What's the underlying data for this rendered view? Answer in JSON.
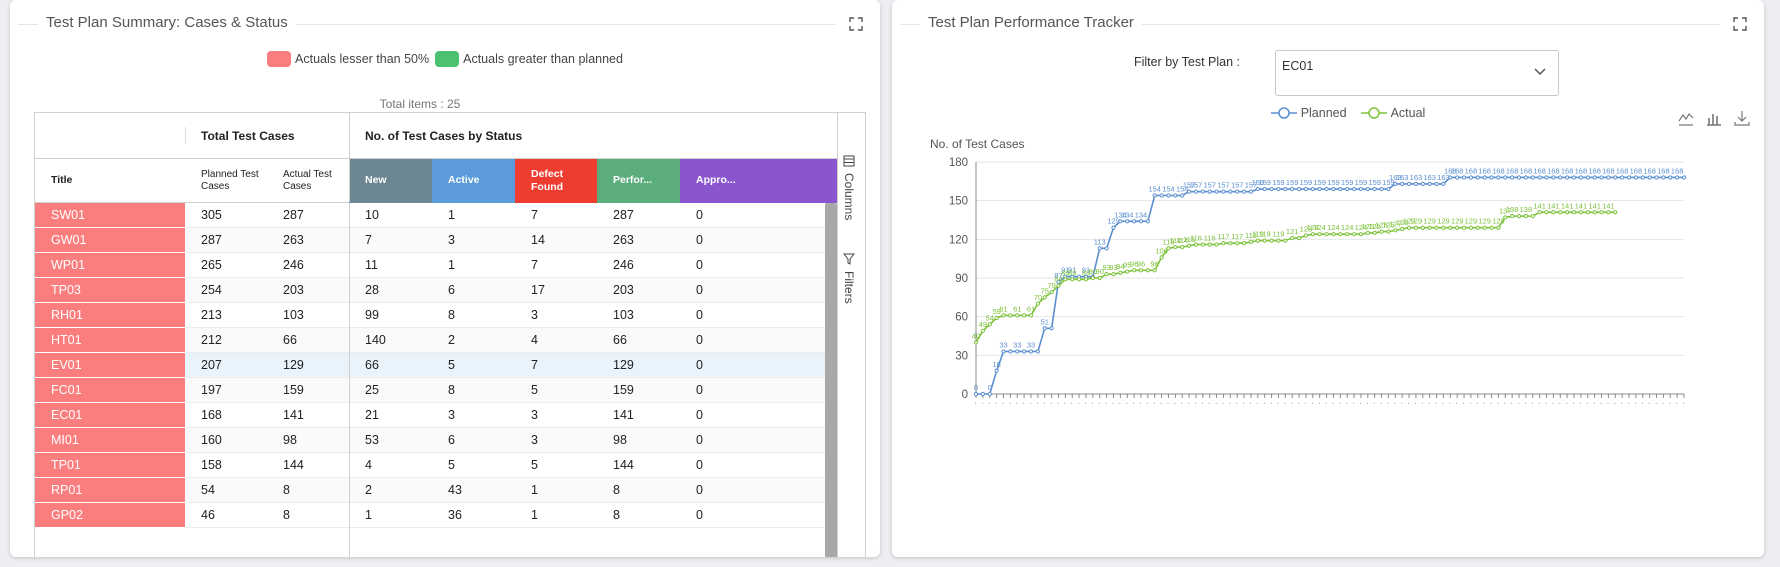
{
  "left_panel": {
    "title": "Test Plan Summary: Cases & Status",
    "legend": [
      {
        "label": "Actuals lesser than 50%",
        "color": "#fb7e7e"
      },
      {
        "label": "Actuals greater than planned",
        "color": "#4cc170"
      }
    ],
    "total_items": "Total items : 25",
    "group_headers": {
      "total": "Total Test Cases",
      "status": "No. of Test Cases by Status"
    },
    "columns": {
      "title": "Title",
      "planned": "Planned Test Cases",
      "actual": "Actual Test Cases",
      "new": "New",
      "active": "Active",
      "defect": "Defect Found",
      "performed": "Perfor...",
      "approved": "Appro..."
    },
    "status_colors": {
      "new": "#6c8791",
      "active": "#5b9bd9",
      "defect": "#ee3d30",
      "performed": "#5cad7c",
      "approved": "#8a56d0"
    },
    "sidebar": {
      "columns": "Columns",
      "filters": "Filters"
    },
    "rows": [
      {
        "title": "SW01",
        "planned": "305",
        "actual": "287",
        "new": "10",
        "active": "1",
        "defect": "7",
        "performed": "287",
        "approved": "0"
      },
      {
        "title": "GW01",
        "planned": "287",
        "actual": "263",
        "new": "7",
        "active": "3",
        "defect": "14",
        "performed": "263",
        "approved": "0"
      },
      {
        "title": "WP01",
        "planned": "265",
        "actual": "246",
        "new": "11",
        "active": "1",
        "defect": "7",
        "performed": "246",
        "approved": "0"
      },
      {
        "title": "TP03",
        "planned": "254",
        "actual": "203",
        "new": "28",
        "active": "6",
        "defect": "17",
        "performed": "203",
        "approved": "0"
      },
      {
        "title": "RH01",
        "planned": "213",
        "actual": "103",
        "new": "99",
        "active": "8",
        "defect": "3",
        "performed": "103",
        "approved": "0"
      },
      {
        "title": "HT01",
        "planned": "212",
        "actual": "66",
        "new": "140",
        "active": "2",
        "defect": "4",
        "performed": "66",
        "approved": "0"
      },
      {
        "title": "EV01",
        "planned": "207",
        "actual": "129",
        "new": "66",
        "active": "5",
        "defect": "7",
        "performed": "129",
        "approved": "0"
      },
      {
        "title": "FC01",
        "planned": "197",
        "actual": "159",
        "new": "25",
        "active": "8",
        "defect": "5",
        "performed": "159",
        "approved": "0"
      },
      {
        "title": "EC01",
        "planned": "168",
        "actual": "141",
        "new": "21",
        "active": "3",
        "defect": "3",
        "performed": "141",
        "approved": "0"
      },
      {
        "title": "MI01",
        "planned": "160",
        "actual": "98",
        "new": "53",
        "active": "6",
        "defect": "3",
        "performed": "98",
        "approved": "0"
      },
      {
        "title": "TP01",
        "planned": "158",
        "actual": "144",
        "new": "4",
        "active": "5",
        "defect": "5",
        "performed": "144",
        "approved": "0"
      },
      {
        "title": "RP01",
        "planned": "54",
        "actual": "8",
        "new": "2",
        "active": "43",
        "defect": "1",
        "performed": "8",
        "approved": "0"
      },
      {
        "title": "GP02",
        "planned": "46",
        "actual": "8",
        "new": "1",
        "active": "36",
        "defect": "1",
        "performed": "8",
        "approved": "0"
      }
    ]
  },
  "right_panel": {
    "title": "Test Plan Performance Tracker",
    "filter_label": "Filter by Test Plan :",
    "filter_value": "EC01",
    "legend": [
      {
        "label": "Planned",
        "color": "#5b8fd0"
      },
      {
        "label": "Actual",
        "color": "#7cc23a"
      }
    ],
    "toolbox": [
      "line-chart-icon",
      "bar-chart-icon",
      "download-icon"
    ]
  },
  "chart_data": {
    "type": "line",
    "ylabel": "No. of Test Cases",
    "ylim": [
      0,
      180
    ],
    "yticks": [
      0,
      30,
      60,
      90,
      120,
      150,
      180
    ],
    "x_count": 104,
    "grid": "horizontal",
    "legend_position": "top",
    "series": [
      {
        "name": "Planned",
        "color": "#5b8fd0",
        "values": [
          0,
          0,
          0,
          18,
          33,
          33,
          33,
          33,
          33,
          33,
          51,
          51,
          87,
          91,
          91,
          91,
          91,
          91,
          113,
          113,
          129,
          134,
          134,
          134,
          134,
          134,
          154,
          154,
          154,
          154,
          154,
          157,
          157,
          157,
          157,
          157,
          157,
          157,
          157,
          157,
          157,
          159,
          159,
          159,
          159,
          159,
          159,
          159,
          159,
          159,
          159,
          159,
          159,
          159,
          159,
          159,
          159,
          159,
          159,
          159,
          159,
          163,
          163,
          163,
          163,
          163,
          163,
          163,
          163,
          168,
          168,
          168,
          168,
          168,
          168,
          168,
          168,
          168,
          168,
          168,
          168,
          168,
          168,
          168,
          168,
          168,
          168,
          168,
          168,
          168,
          168,
          168,
          168,
          168,
          168,
          168,
          168,
          168,
          168,
          168,
          168,
          168,
          168,
          168
        ]
      },
      {
        "name": "Actual",
        "color": "#7cc23a",
        "values": [
          40,
          49,
          54,
          59,
          61,
          61,
          61,
          61,
          61,
          70,
          75,
          79,
          84,
          89,
          89,
          89,
          89,
          90,
          90,
          93,
          93,
          94,
          95,
          96,
          96,
          96,
          96,
          106,
          113,
          114,
          114,
          115,
          116,
          116,
          116,
          116,
          117,
          117,
          117,
          117,
          118,
          119,
          119,
          119,
          119,
          119,
          121,
          121,
          123,
          124,
          124,
          124,
          124,
          124,
          124,
          124,
          124,
          125,
          125,
          126,
          126,
          127,
          128,
          129,
          129,
          129,
          129,
          129,
          129,
          129,
          129,
          129,
          129,
          129,
          129,
          129,
          129,
          137,
          138,
          138,
          138,
          138,
          141,
          141,
          141,
          141,
          141,
          141,
          141,
          141,
          141,
          141,
          141,
          141
        ]
      }
    ]
  }
}
